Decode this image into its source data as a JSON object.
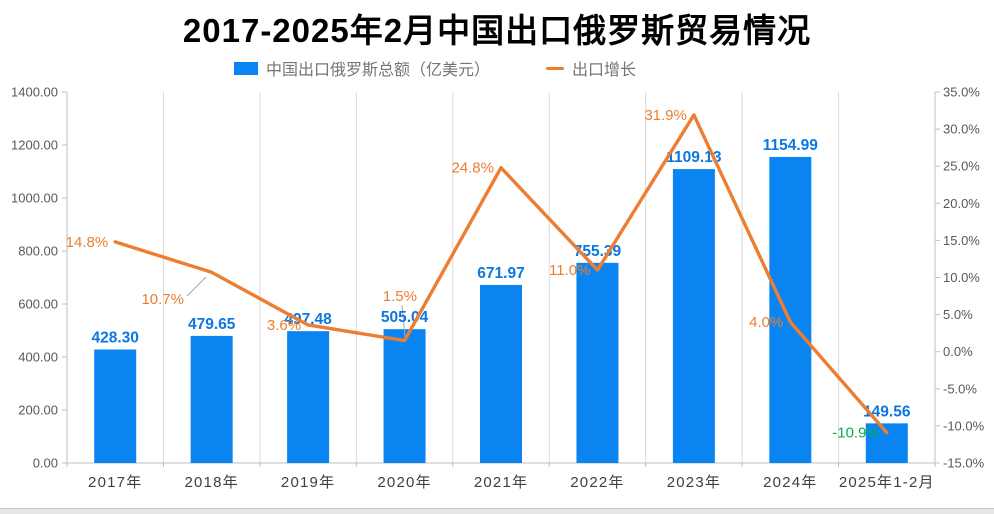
{
  "chart_data": {
    "type": "combo-bar-line",
    "title": "2017-2025年2月中国出口俄罗斯贸易情况",
    "categories": [
      "2017年",
      "2018年",
      "2019年",
      "2020年",
      "2021年",
      "2022年",
      "2023年",
      "2024年",
      "2025年1-2月"
    ],
    "series": [
      {
        "name": "中国出口俄罗斯总额（亿美元）",
        "type": "bar",
        "axis": "left",
        "color": "#0A84F0",
        "label_color": "#0A78E0",
        "values": [
          428.3,
          479.65,
          497.48,
          505.04,
          671.97,
          755.39,
          1109.13,
          1154.99,
          149.56
        ],
        "labels": [
          "428.30",
          "479.65",
          "497.48",
          "505.04",
          "671.97",
          "755.39",
          "1109.13",
          "1154.99",
          "149.56"
        ]
      },
      {
        "name": "出口增长",
        "type": "line",
        "axis": "right",
        "color": "#ED7D31",
        "values": [
          14.8,
          10.7,
          3.6,
          1.5,
          24.8,
          11.0,
          31.9,
          4.0,
          -10.9
        ],
        "labels": [
          "14.8%",
          "10.7%",
          "3.6%",
          "1.5%",
          "24.8%",
          "11.0%",
          "31.9%",
          "4.0%",
          "-10.9%"
        ],
        "label_colors": [
          "#ED7D31",
          "#ED7D31",
          "#ED7D31",
          "#ED7D31",
          "#ED7D31",
          "#ED7D31",
          "#ED7D31",
          "#ED7D31",
          "#00B050"
        ]
      }
    ],
    "left_axis": {
      "min": 0,
      "max": 1400,
      "step": 200,
      "labels": [
        "0.00",
        "200.00",
        "400.00",
        "600.00",
        "800.00",
        "1000.00",
        "1200.00",
        "1400.00"
      ]
    },
    "right_axis": {
      "min": -15,
      "max": 35,
      "step": 5,
      "labels": [
        "-15.0%",
        "-10.0%",
        "-5.0%",
        "0.0%",
        "5.0%",
        "10.0%",
        "15.0%",
        "20.0%",
        "25.0%",
        "30.0%",
        "35.0%"
      ]
    },
    "legend_position": "top",
    "grid": {
      "vertical": true,
      "horizontal": false
    },
    "colors": {
      "background": "#FFFFFF",
      "grid": "#D9D9D9",
      "axis": "#BFBFBF",
      "axis_text": "#595959",
      "category_text": "#404040",
      "legend_text": "#757575",
      "leader": "#A6A6A6",
      "negative_label": "#00B050",
      "title_text": "#000000"
    }
  }
}
